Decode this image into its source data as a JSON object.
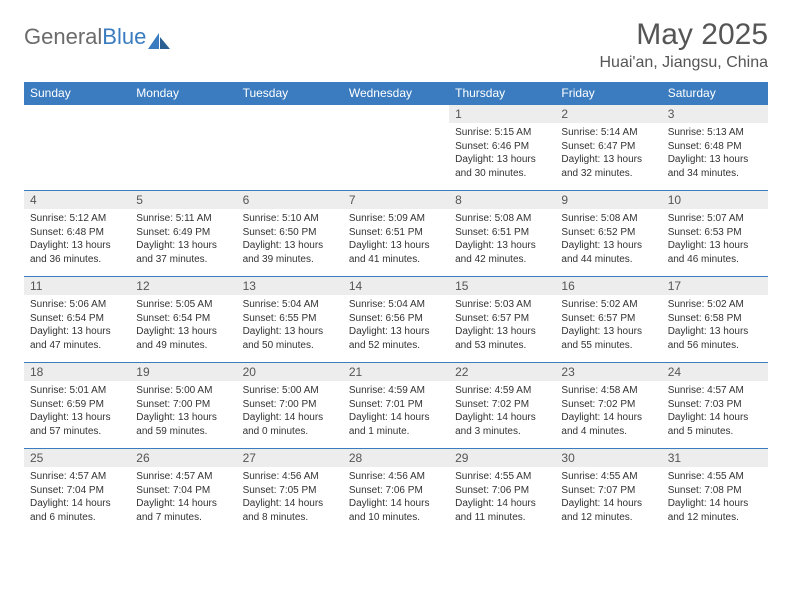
{
  "logo": {
    "text_gray": "General",
    "text_blue": "Blue"
  },
  "title": "May 2025",
  "location": "Huai'an, Jiangsu, China",
  "colors": {
    "header_bg": "#3a7cbf",
    "daynum_bg": "#ededed",
    "text_gray": "#6b6b6b",
    "text_body": "#333333",
    "border": "#3a7cbf",
    "page_bg": "#ffffff"
  },
  "weekdays": [
    "Sunday",
    "Monday",
    "Tuesday",
    "Wednesday",
    "Thursday",
    "Friday",
    "Saturday"
  ],
  "weeks": [
    [
      {
        "empty": true
      },
      {
        "empty": true
      },
      {
        "empty": true
      },
      {
        "empty": true
      },
      {
        "n": "1",
        "sunrise": "5:15 AM",
        "sunset": "6:46 PM",
        "dh": "13",
        "dm": "30"
      },
      {
        "n": "2",
        "sunrise": "5:14 AM",
        "sunset": "6:47 PM",
        "dh": "13",
        "dm": "32"
      },
      {
        "n": "3",
        "sunrise": "5:13 AM",
        "sunset": "6:48 PM",
        "dh": "13",
        "dm": "34"
      }
    ],
    [
      {
        "n": "4",
        "sunrise": "5:12 AM",
        "sunset": "6:48 PM",
        "dh": "13",
        "dm": "36"
      },
      {
        "n": "5",
        "sunrise": "5:11 AM",
        "sunset": "6:49 PM",
        "dh": "13",
        "dm": "37"
      },
      {
        "n": "6",
        "sunrise": "5:10 AM",
        "sunset": "6:50 PM",
        "dh": "13",
        "dm": "39"
      },
      {
        "n": "7",
        "sunrise": "5:09 AM",
        "sunset": "6:51 PM",
        "dh": "13",
        "dm": "41"
      },
      {
        "n": "8",
        "sunrise": "5:08 AM",
        "sunset": "6:51 PM",
        "dh": "13",
        "dm": "42"
      },
      {
        "n": "9",
        "sunrise": "5:08 AM",
        "sunset": "6:52 PM",
        "dh": "13",
        "dm": "44"
      },
      {
        "n": "10",
        "sunrise": "5:07 AM",
        "sunset": "6:53 PM",
        "dh": "13",
        "dm": "46"
      }
    ],
    [
      {
        "n": "11",
        "sunrise": "5:06 AM",
        "sunset": "6:54 PM",
        "dh": "13",
        "dm": "47"
      },
      {
        "n": "12",
        "sunrise": "5:05 AM",
        "sunset": "6:54 PM",
        "dh": "13",
        "dm": "49"
      },
      {
        "n": "13",
        "sunrise": "5:04 AM",
        "sunset": "6:55 PM",
        "dh": "13",
        "dm": "50"
      },
      {
        "n": "14",
        "sunrise": "5:04 AM",
        "sunset": "6:56 PM",
        "dh": "13",
        "dm": "52"
      },
      {
        "n": "15",
        "sunrise": "5:03 AM",
        "sunset": "6:57 PM",
        "dh": "13",
        "dm": "53"
      },
      {
        "n": "16",
        "sunrise": "5:02 AM",
        "sunset": "6:57 PM",
        "dh": "13",
        "dm": "55"
      },
      {
        "n": "17",
        "sunrise": "5:02 AM",
        "sunset": "6:58 PM",
        "dh": "13",
        "dm": "56"
      }
    ],
    [
      {
        "n": "18",
        "sunrise": "5:01 AM",
        "sunset": "6:59 PM",
        "dh": "13",
        "dm": "57"
      },
      {
        "n": "19",
        "sunrise": "5:00 AM",
        "sunset": "7:00 PM",
        "dh": "13",
        "dm": "59"
      },
      {
        "n": "20",
        "sunrise": "5:00 AM",
        "sunset": "7:00 PM",
        "dh": "14",
        "dm": "0"
      },
      {
        "n": "21",
        "sunrise": "4:59 AM",
        "sunset": "7:01 PM",
        "dh": "14",
        "dm": "1",
        "minute_word": "minute"
      },
      {
        "n": "22",
        "sunrise": "4:59 AM",
        "sunset": "7:02 PM",
        "dh": "14",
        "dm": "3"
      },
      {
        "n": "23",
        "sunrise": "4:58 AM",
        "sunset": "7:02 PM",
        "dh": "14",
        "dm": "4"
      },
      {
        "n": "24",
        "sunrise": "4:57 AM",
        "sunset": "7:03 PM",
        "dh": "14",
        "dm": "5"
      }
    ],
    [
      {
        "n": "25",
        "sunrise": "4:57 AM",
        "sunset": "7:04 PM",
        "dh": "14",
        "dm": "6"
      },
      {
        "n": "26",
        "sunrise": "4:57 AM",
        "sunset": "7:04 PM",
        "dh": "14",
        "dm": "7"
      },
      {
        "n": "27",
        "sunrise": "4:56 AM",
        "sunset": "7:05 PM",
        "dh": "14",
        "dm": "8"
      },
      {
        "n": "28",
        "sunrise": "4:56 AM",
        "sunset": "7:06 PM",
        "dh": "14",
        "dm": "10"
      },
      {
        "n": "29",
        "sunrise": "4:55 AM",
        "sunset": "7:06 PM",
        "dh": "14",
        "dm": "11"
      },
      {
        "n": "30",
        "sunrise": "4:55 AM",
        "sunset": "7:07 PM",
        "dh": "14",
        "dm": "12"
      },
      {
        "n": "31",
        "sunrise": "4:55 AM",
        "sunset": "7:08 PM",
        "dh": "14",
        "dm": "12"
      }
    ]
  ]
}
